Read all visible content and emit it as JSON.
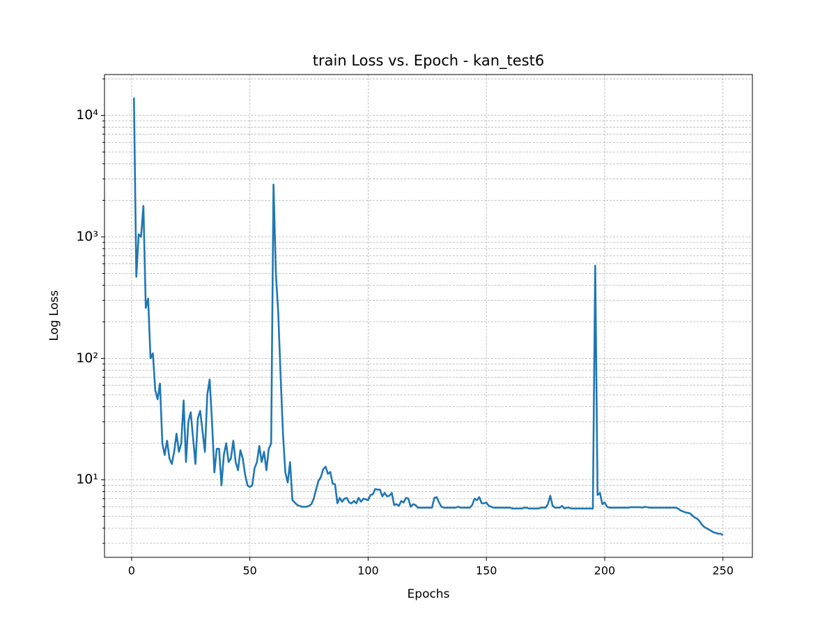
{
  "chart_data": {
    "type": "line",
    "title": "train Loss vs. Epoch - kan_test6",
    "x_label": "Epochs",
    "y_label": "Log Loss",
    "log_y": true,
    "grid": true,
    "xlim": [
      -11.45,
      262.45
    ],
    "xticks": [
      0,
      50,
      100,
      150,
      200,
      250
    ],
    "ylim": [
      2.3,
      21700
    ],
    "yticks": [
      {
        "value": 10,
        "label": "10¹"
      },
      {
        "value": 100,
        "label": "10²"
      },
      {
        "value": 1000,
        "label": "10³"
      },
      {
        "value": 10000,
        "label": "10⁴"
      }
    ],
    "yminorticks": [
      3,
      4,
      5,
      6,
      7,
      8,
      9,
      20,
      30,
      40,
      50,
      60,
      70,
      80,
      90,
      200,
      300,
      400,
      500,
      600,
      700,
      800,
      900,
      2000,
      3000,
      4000,
      5000,
      6000,
      7000,
      8000,
      9000,
      20000
    ],
    "x": [
      1,
      2,
      3,
      4,
      5,
      6,
      7,
      8,
      9,
      10,
      11,
      12,
      13,
      14,
      15,
      16,
      17,
      18,
      19,
      20,
      21,
      22,
      23,
      24,
      25,
      26,
      27,
      28,
      29,
      30,
      31,
      32,
      33,
      34,
      35,
      36,
      37,
      38,
      39,
      40,
      41,
      42,
      43,
      44,
      45,
      46,
      47,
      48,
      49,
      50,
      51,
      52,
      53,
      54,
      55,
      56,
      57,
      58,
      59,
      60,
      61,
      62,
      63,
      64,
      65,
      66,
      67,
      68,
      69,
      70,
      71,
      72,
      73,
      74,
      75,
      76,
      77,
      78,
      79,
      80,
      81,
      82,
      83,
      84,
      85,
      86,
      87,
      88,
      89,
      90,
      91,
      92,
      93,
      94,
      95,
      96,
      97,
      98,
      99,
      100,
      101,
      102,
      103,
      104,
      105,
      106,
      107,
      108,
      109,
      110,
      111,
      112,
      113,
      114,
      115,
      116,
      117,
      118,
      119,
      120,
      121,
      122,
      123,
      124,
      125,
      126,
      127,
      128,
      129,
      130,
      131,
      132,
      133,
      134,
      135,
      136,
      137,
      138,
      139,
      140,
      141,
      142,
      143,
      144,
      145,
      146,
      147,
      148,
      149,
      150,
      151,
      152,
      153,
      154,
      155,
      156,
      157,
      158,
      159,
      160,
      161,
      162,
      163,
      164,
      165,
      166,
      167,
      168,
      169,
      170,
      171,
      172,
      173,
      174,
      175,
      176,
      177,
      178,
      179,
      180,
      181,
      182,
      183,
      184,
      185,
      186,
      187,
      188,
      189,
      190,
      191,
      192,
      193,
      194,
      195,
      196,
      197,
      198,
      199,
      200,
      201,
      202,
      203,
      204,
      205,
      206,
      207,
      208,
      209,
      210,
      211,
      212,
      213,
      214,
      215,
      216,
      217,
      218,
      219,
      220,
      221,
      222,
      223,
      224,
      225,
      226,
      227,
      228,
      229,
      230,
      231,
      232,
      233,
      234,
      235,
      236,
      237,
      238,
      239,
      240,
      241,
      242,
      243,
      244,
      245,
      246,
      247,
      248,
      249,
      250
    ],
    "series": [
      {
        "color": "#1f77b4",
        "values": [
          14000,
          470,
          1050,
          1000,
          1800,
          260,
          310,
          100,
          110,
          55,
          46,
          62,
          20,
          16,
          21,
          15,
          13.5,
          17,
          24,
          17,
          20,
          45,
          14,
          30,
          36,
          22,
          13.5,
          32,
          37,
          25,
          17,
          50,
          67,
          30,
          11.5,
          18,
          18,
          9,
          16,
          20,
          14,
          15,
          21,
          14,
          12,
          17.5,
          15,
          11,
          9,
          8.7,
          9,
          12.5,
          14,
          19,
          14,
          17,
          12,
          18,
          20,
          2700,
          500,
          236,
          72,
          24,
          11.5,
          9.5,
          14,
          6.8,
          6.5,
          6.2,
          6.1,
          6.0,
          6.0,
          6.0,
          6.1,
          6.3,
          7.0,
          8.3,
          9.8,
          10.5,
          12.2,
          12.8,
          11.2,
          11.6,
          9.3,
          9.2,
          6.4,
          7.1,
          6.6,
          7.0,
          7.1,
          6.5,
          6.4,
          6.7,
          6.4,
          7.1,
          6.6,
          7.0,
          6.9,
          6.8,
          7.5,
          7.6,
          8.4,
          8.3,
          8.3,
          7.3,
          7.8,
          7.3,
          7.4,
          7.8,
          6.2,
          6.3,
          6.1,
          6.7,
          6.5,
          7.1,
          7.0,
          6.0,
          6.3,
          6.2,
          5.9,
          5.9,
          5.9,
          5.9,
          5.9,
          5.9,
          5.9,
          7.1,
          7.2,
          6.5,
          6.0,
          5.9,
          5.9,
          5.9,
          5.9,
          5.9,
          5.9,
          6.0,
          5.9,
          5.9,
          5.9,
          5.9,
          5.9,
          6.2,
          7.0,
          6.8,
          7.2,
          6.4,
          6.4,
          6.5,
          6.1,
          6.0,
          5.9,
          5.9,
          5.9,
          5.9,
          5.9,
          5.9,
          5.9,
          5.9,
          5.8,
          5.8,
          5.8,
          5.8,
          5.8,
          5.9,
          5.9,
          5.8,
          5.8,
          5.8,
          5.8,
          5.8,
          5.9,
          5.9,
          5.9,
          6.3,
          7.4,
          6.1,
          5.9,
          5.9,
          5.9,
          6.1,
          5.8,
          5.9,
          5.9,
          5.8,
          5.8,
          5.8,
          5.8,
          5.8,
          5.8,
          5.8,
          5.8,
          5.8,
          5.8,
          580,
          7.5,
          7.8,
          6.3,
          6.5,
          6.0,
          5.9,
          5.9,
          5.9,
          5.9,
          5.9,
          5.9,
          5.9,
          5.9,
          5.9,
          5.95,
          5.95,
          5.95,
          5.95,
          5.95,
          5.9,
          6.0,
          5.95,
          5.9,
          5.9,
          5.9,
          5.9,
          5.9,
          5.9,
          5.9,
          5.9,
          5.9,
          5.9,
          5.9,
          5.9,
          5.8,
          5.6,
          5.5,
          5.4,
          5.35,
          5.3,
          5.1,
          4.9,
          4.8,
          4.6,
          4.3,
          4.1,
          4.0,
          3.9,
          3.8,
          3.7,
          3.65,
          3.6,
          3.6,
          3.5
        ]
      }
    ]
  }
}
